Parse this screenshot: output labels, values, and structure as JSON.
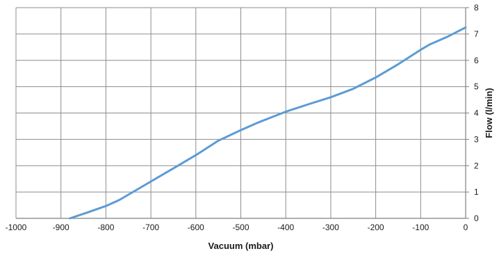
{
  "chart_data": {
    "type": "line",
    "title": "",
    "xlabel": "Vacuum (mbar)",
    "ylabel": "Flow (l/min)",
    "xlim": [
      -1000,
      0
    ],
    "ylim": [
      0,
      8
    ],
    "x_ticks": [
      -1000,
      -900,
      -800,
      -700,
      -600,
      -500,
      -400,
      -300,
      -200,
      -100,
      0
    ],
    "y_ticks": [
      0,
      1,
      2,
      3,
      4,
      5,
      6,
      7,
      8
    ],
    "y_axis_position": "right",
    "grid": true,
    "legend": "none",
    "series": [
      {
        "color": "#5b9bd5",
        "x": [
          -880,
          -840,
          -800,
          -770,
          -700,
          -640,
          -600,
          -550,
          -500,
          -460,
          -400,
          -350,
          -300,
          -250,
          -200,
          -150,
          -100,
          -80,
          -40,
          0
        ],
        "y": [
          0,
          0.23,
          0.47,
          0.7,
          1.4,
          2.0,
          2.4,
          2.95,
          3.35,
          3.65,
          4.05,
          4.33,
          4.6,
          4.92,
          5.35,
          5.85,
          6.4,
          6.6,
          6.9,
          7.25
        ]
      }
    ]
  }
}
